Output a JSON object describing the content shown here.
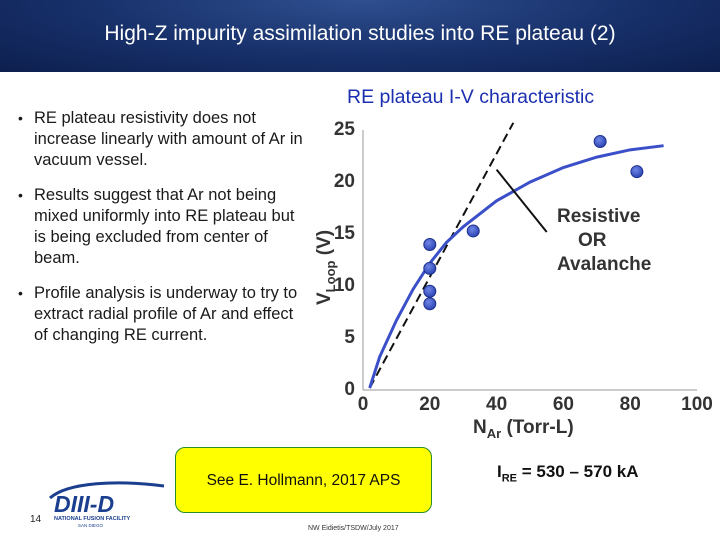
{
  "title": "High-Z impurity assimilation studies into RE plateau (2)",
  "bullets": [
    "RE plateau resistivity does not increase linearly with amount of Ar in vacuum vessel.",
    "Results suggest that Ar not being mixed uniformly into RE plateau but is being excluded from center of beam.",
    "Profile analysis is underway to try to extract radial profile of Ar and effect of changing RE current."
  ],
  "reference": "See E. Hollmann, 2017 APS",
  "current_note": {
    "label": "I",
    "sub": "RE",
    "value": " = 530 – 570 kA"
  },
  "page_number": "14",
  "footer": "NW Eidietis/TSDW/July 2017",
  "logo": {
    "text": "DIII-D",
    "caption": "NATIONAL FUSION FACILITY",
    "sub": "SAN DIEGO"
  },
  "colors": {
    "accent_blue": "#1c2fb0",
    "curve": "#3a4fc8",
    "points": "#3e58c8",
    "box": "#ffff00"
  },
  "chart_data": {
    "type": "scatter",
    "title": "RE plateau I-V characteristic",
    "xlabel": {
      "main": "N",
      "sub": "Ar",
      "rest": " (Torr-L)"
    },
    "ylabel": {
      "main": "V",
      "sub": "Loop",
      "rest": " (V)"
    },
    "xlim": [
      0,
      100
    ],
    "ylim": [
      0,
      25
    ],
    "xticks": [
      0,
      20,
      40,
      60,
      80,
      100
    ],
    "yticks": [
      0,
      5,
      10,
      15,
      20,
      25
    ],
    "points": [
      {
        "x": 20,
        "y": 13.8
      },
      {
        "x": 20,
        "y": 11.5
      },
      {
        "x": 20,
        "y": 9.3
      },
      {
        "x": 20,
        "y": 8.1
      },
      {
        "x": 33,
        "y": 15.1
      },
      {
        "x": 71,
        "y": 23.7
      },
      {
        "x": 82,
        "y": 20.8
      }
    ],
    "fit_curve": [
      {
        "x": 2,
        "y": 0
      },
      {
        "x": 5,
        "y": 3
      },
      {
        "x": 10,
        "y": 6.5
      },
      {
        "x": 15,
        "y": 9.5
      },
      {
        "x": 20,
        "y": 12
      },
      {
        "x": 25,
        "y": 14
      },
      {
        "x": 30,
        "y": 15.5
      },
      {
        "x": 40,
        "y": 18
      },
      {
        "x": 50,
        "y": 19.8
      },
      {
        "x": 60,
        "y": 21.2
      },
      {
        "x": 70,
        "y": 22.2
      },
      {
        "x": 80,
        "y": 22.9
      },
      {
        "x": 90,
        "y": 23.3
      }
    ],
    "linear_line": [
      {
        "x": 2,
        "y": 0
      },
      {
        "x": 45,
        "y": 27
      }
    ],
    "annotation": [
      "Resistive",
      "OR",
      "Avalanche"
    ],
    "annotation_arrow": [
      {
        "x": 40,
        "y": 21
      },
      {
        "x": 55,
        "y": 15
      }
    ]
  }
}
